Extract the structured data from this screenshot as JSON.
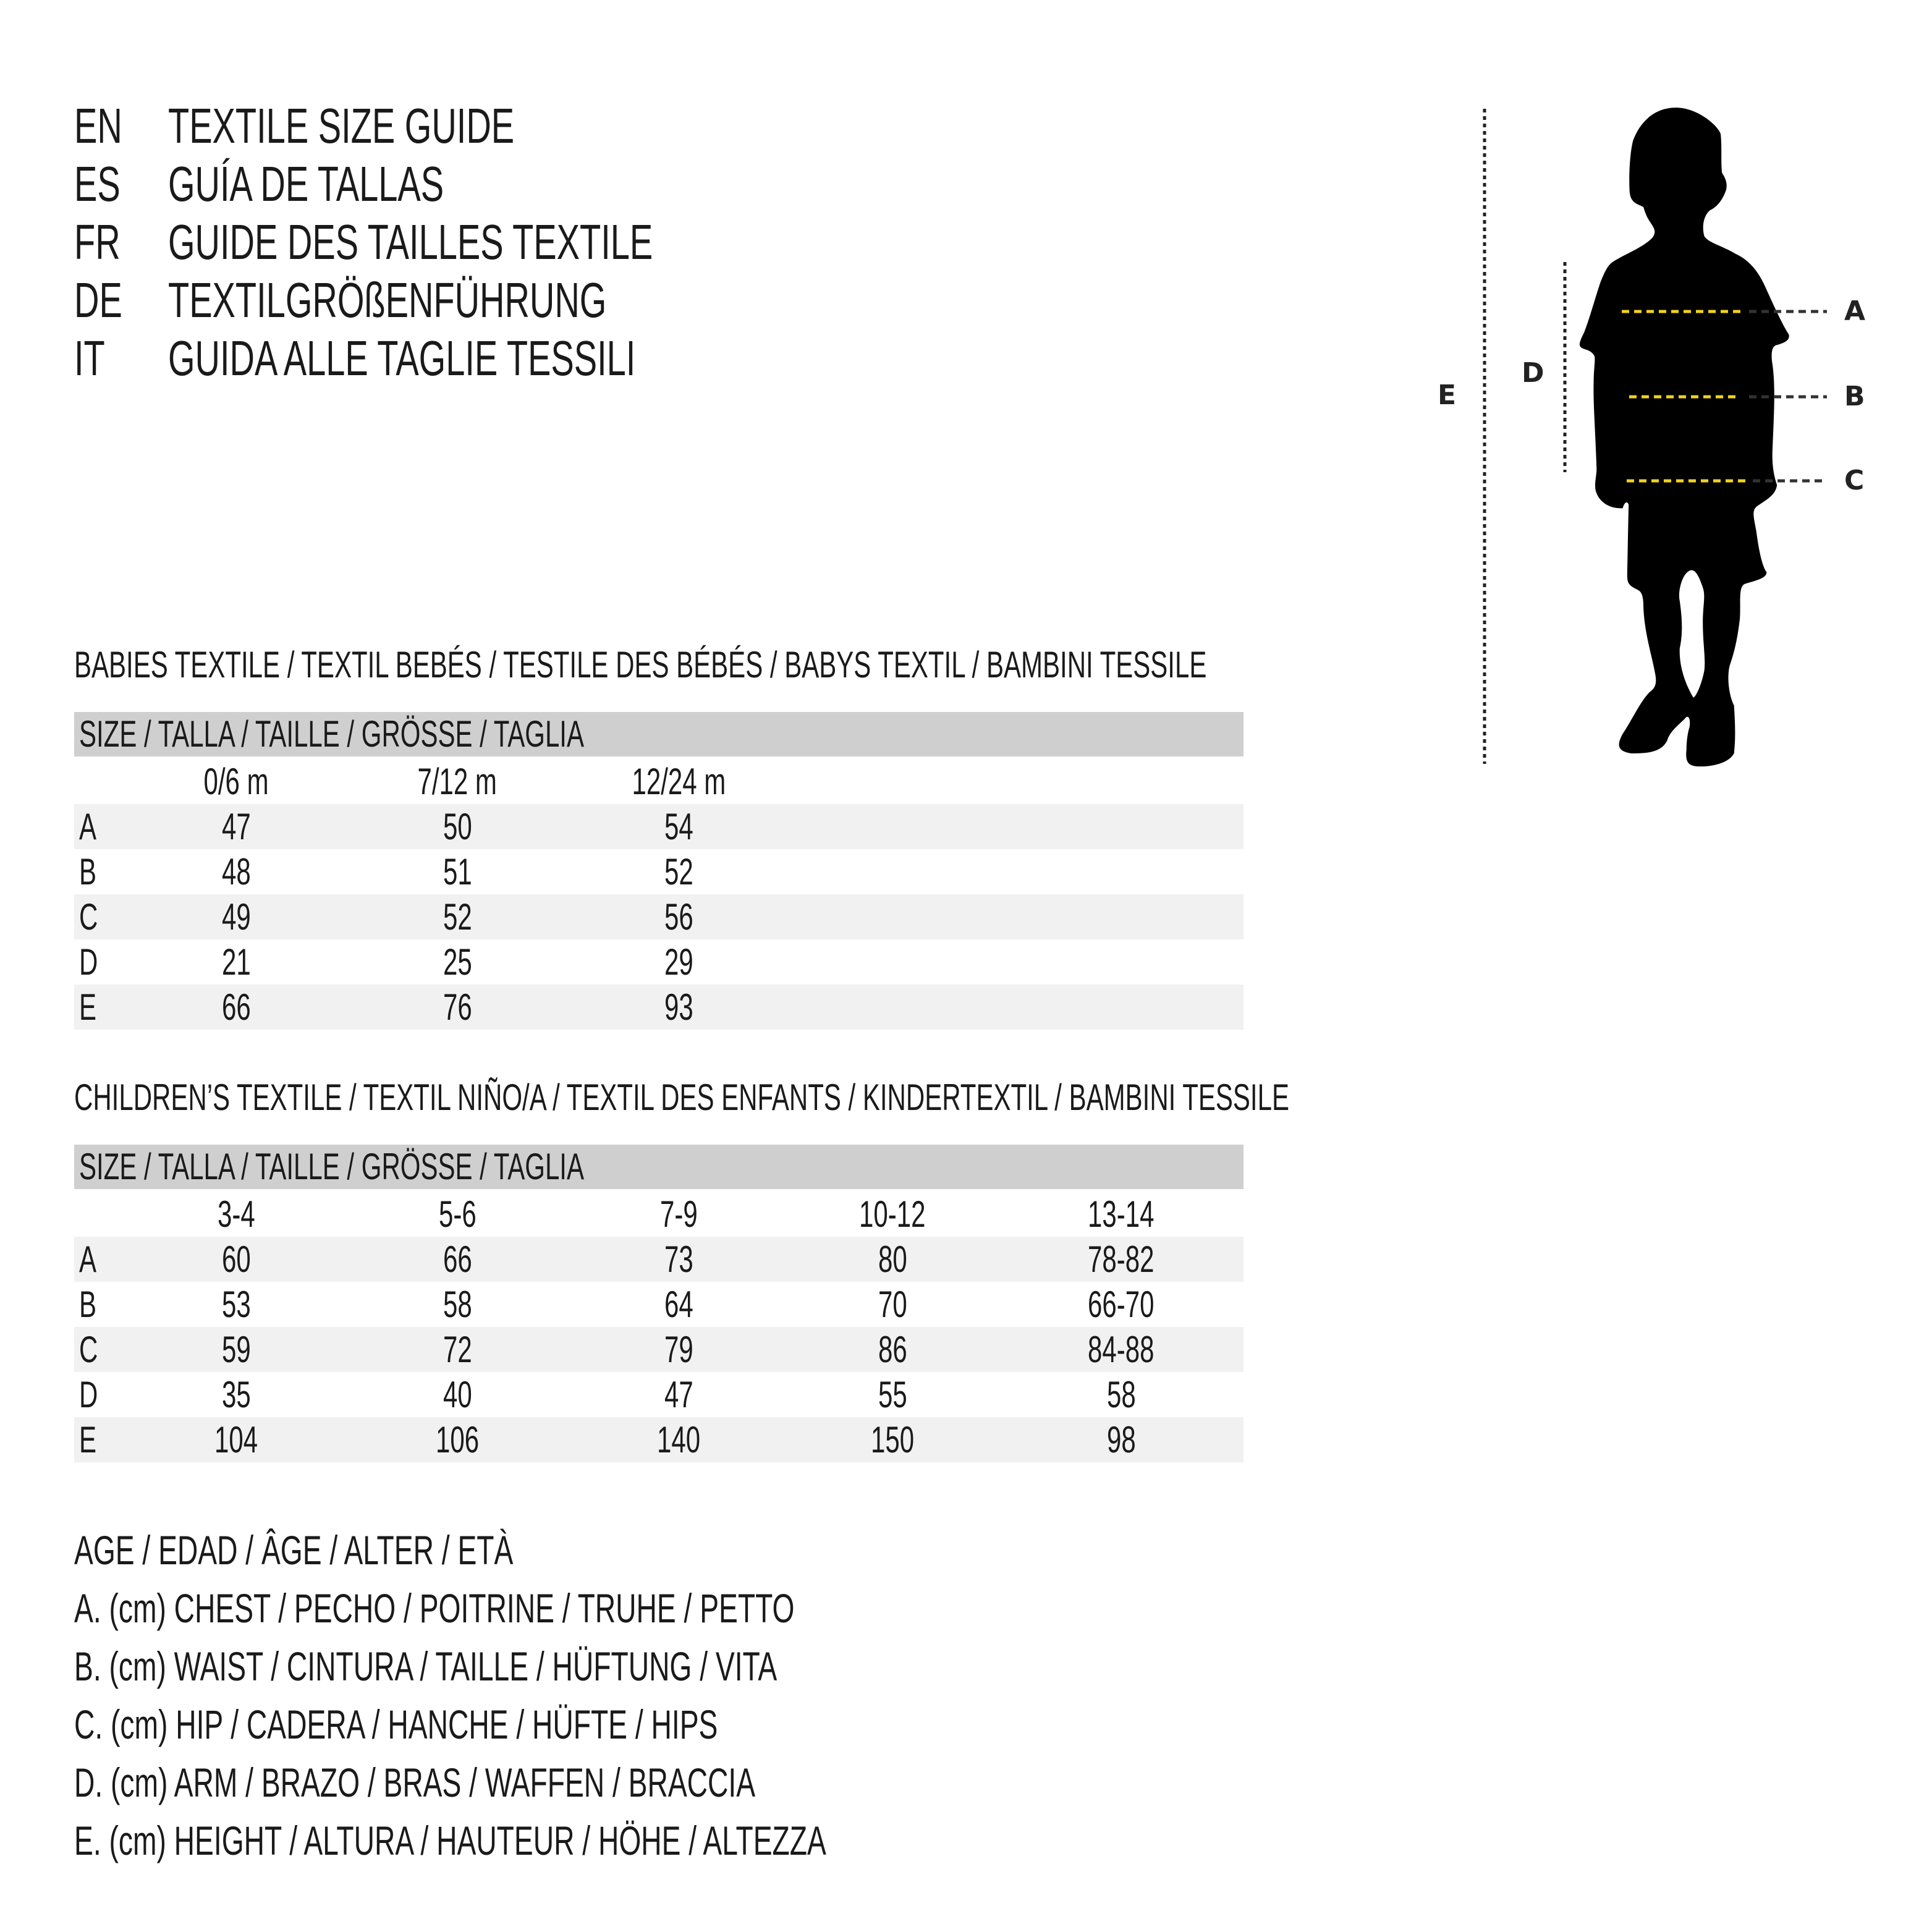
{
  "header": [
    {
      "code": "EN",
      "title": "TEXTILE SIZE GUIDE"
    },
    {
      "code": "ES",
      "title": "GUÍA DE TALLAS"
    },
    {
      "code": "FR",
      "title": "GUIDE DES TAILLES TEXTILE"
    },
    {
      "code": "DE",
      "title": "TEXTILGRÖßENFÜHRUNG"
    },
    {
      "code": "IT",
      "title": "GUIDA ALLE TAGLIE TESSILI"
    }
  ],
  "babies": {
    "title": "BABIES TEXTILE / TEXTIL BEBÉS / TESTILE DES BÉBÉS / BABYS TEXTIL / BAMBINI TESSILE",
    "size_label": "SIZE / TALLA / TAILLE / GRÖSSE / TAGLIA",
    "columns": [
      "0/6 m",
      "7/12 m",
      "12/24 m"
    ],
    "rows": [
      {
        "label": "A",
        "values": [
          "47",
          "50",
          "54"
        ]
      },
      {
        "label": "B",
        "values": [
          "48",
          "51",
          "52"
        ]
      },
      {
        "label": "C",
        "values": [
          "49",
          "52",
          "56"
        ]
      },
      {
        "label": "D",
        "values": [
          "21",
          "25",
          "29"
        ]
      },
      {
        "label": "E",
        "values": [
          "66",
          "76",
          "93"
        ]
      }
    ]
  },
  "children": {
    "title": "CHILDREN’S TEXTILE / TEXTIL NIÑO/A / TEXTIL DES ENFANTS / KINDERTEXTIL / BAMBINI TESSILE",
    "size_label": "SIZE / TALLA / TAILLE / GRÖSSE / TAGLIA",
    "columns": [
      "3-4",
      "5-6",
      "7-9",
      "10-12",
      "13-14"
    ],
    "rows": [
      {
        "label": "A",
        "values": [
          "60",
          "66",
          "73",
          "80",
          "78-82"
        ]
      },
      {
        "label": "B",
        "values": [
          "53",
          "58",
          "64",
          "70",
          "66-70"
        ]
      },
      {
        "label": "C",
        "values": [
          "59",
          "72",
          "79",
          "86",
          "84-88"
        ]
      },
      {
        "label": "D",
        "values": [
          "35",
          "40",
          "47",
          "55",
          "58"
        ]
      },
      {
        "label": "E",
        "values": [
          "104",
          "106",
          "140",
          "150",
          "98"
        ]
      }
    ]
  },
  "legend": [
    "AGE / EDAD / ÂGE / ALTER / ETÀ",
    "A. (cm) CHEST / PECHO / POITRINE / TRUHE / PETTO",
    "B. (cm) WAIST / CINTURA / TAILLE / HÜFTUNG / VITA",
    "C. (cm) HIP / CADERA / HANCHE / HÜFTE / HIPS",
    "D. (cm) ARM / BRAZO / BRAS / WAFFEN / BRACCIA",
    "E. (cm) HEIGHT / ALTURA / HAUTEUR / HÖHE / ALTEZZA"
  ],
  "figure": {
    "labels": {
      "a": "A",
      "b": "B",
      "c": "C",
      "d": "D",
      "e": "E"
    },
    "colors": {
      "measure": "#f2d21b",
      "silhouette": "#000000",
      "guide": "#222222"
    }
  }
}
